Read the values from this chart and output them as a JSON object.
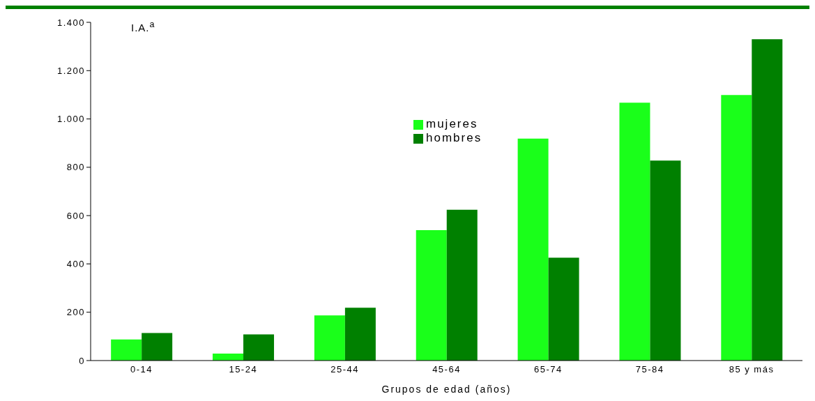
{
  "chart_data": {
    "type": "bar",
    "ylabel": "I.A.$^{a}$",
    "xlabel": "Grupos de edad (años)",
    "categories": [
      "0-14",
      "15-24",
      "25-44",
      "45-64",
      "65-74",
      "75-84",
      "85 y más"
    ],
    "series": [
      {
        "name": "mujeres",
        "color": "#1aff1a",
        "values": [
          87,
          29,
          187,
          540,
          919,
          1067,
          1099
        ]
      },
      {
        "name": "hombres",
        "color": "#008000",
        "values": [
          114,
          108,
          219,
          624,
          426,
          828,
          1330
        ]
      }
    ],
    "ylim": [
      0,
      1400
    ],
    "yticks": [
      0,
      200,
      400,
      600,
      800,
      {
        "value": 1000,
        "label": "1.000"
      },
      {
        "value": 1200,
        "label": "1.200"
      },
      {
        "value": 1400,
        "label": "1.400"
      }
    ],
    "grid": false,
    "legend": "top"
  }
}
